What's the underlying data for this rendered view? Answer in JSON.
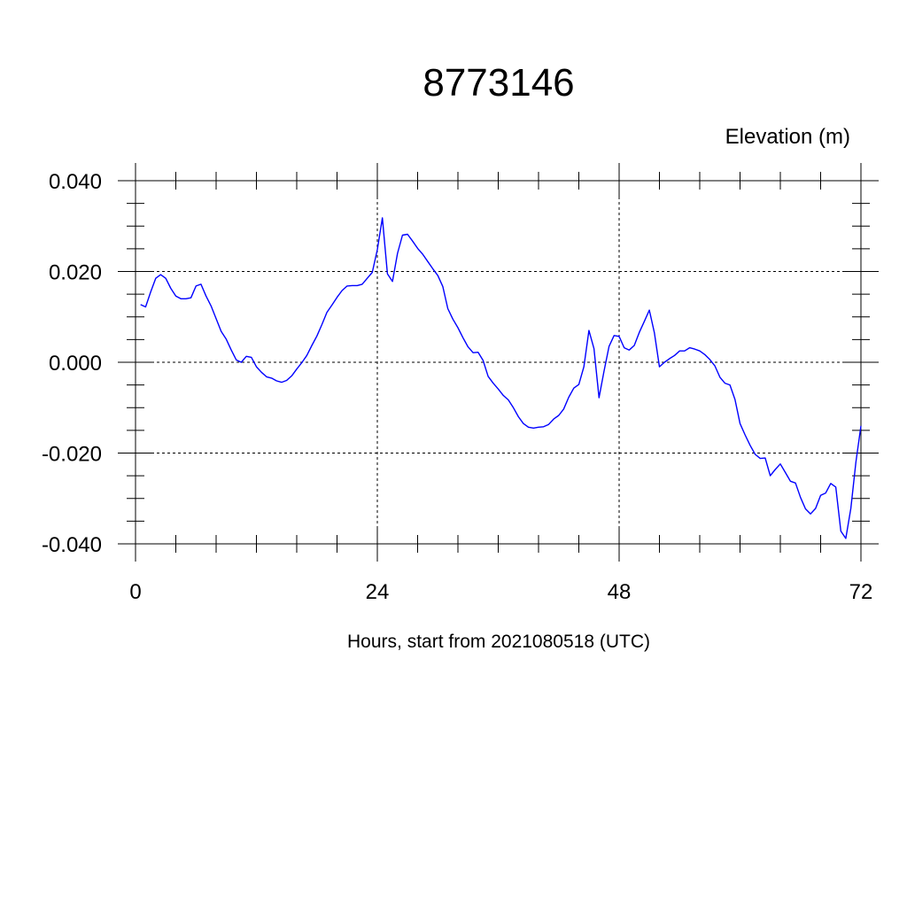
{
  "chart_data": {
    "type": "line",
    "title": "8773146",
    "unit_label": "Elevation (m)",
    "xlabel": "Hours, start from 2021080518 (UTC)",
    "xlim": [
      0,
      72
    ],
    "ylim": [
      -0.04,
      0.04
    ],
    "x_ticks": [
      0,
      24,
      48,
      72
    ],
    "x_tick_labels": [
      "0",
      "24",
      "48",
      "72"
    ],
    "y_ticks": [
      0.04,
      0.02,
      0.0,
      -0.02,
      -0.04
    ],
    "y_tick_labels": [
      "0.040",
      "0.020",
      "0.000",
      "-0.020",
      "-0.040"
    ],
    "grid": true,
    "line_color": "#0000ff",
    "series": [
      {
        "x": [
          0.5,
          1.0,
          1.5,
          2.0,
          2.5,
          3.0,
          3.5,
          4.0,
          4.5,
          5.0,
          5.5,
          6.0,
          6.5,
          7.0,
          7.5,
          8.0,
          8.5,
          9.0,
          9.5,
          10.0,
          10.5,
          11.0,
          11.5,
          12.0,
          12.5,
          13.0,
          13.5,
          14.0,
          14.5,
          15.0,
          15.5,
          16.0,
          16.5,
          17.0,
          17.5,
          18.0,
          18.5,
          19.0,
          19.5,
          20.0,
          20.5,
          21.0,
          21.5,
          22.0,
          22.5,
          23.0,
          23.5,
          24.0,
          24.5,
          25.0,
          25.5,
          26.0,
          26.5,
          27.0,
          27.5,
          28.0,
          28.5,
          29.0,
          29.5,
          30.0,
          30.5,
          31.0,
          31.5,
          32.0,
          32.5,
          33.0,
          33.5,
          34.0,
          34.5,
          35.0,
          35.5,
          36.0,
          36.5,
          37.0,
          37.5,
          38.0,
          38.5,
          39.0,
          39.5,
          40.0,
          40.5,
          41.0,
          41.5,
          42.0,
          42.5,
          43.0,
          43.5,
          44.0,
          44.5,
          45.0,
          45.5,
          46.0,
          46.5,
          47.0,
          47.5,
          48.0,
          48.5,
          49.0,
          49.5,
          50.0,
          50.5,
          51.0,
          51.5,
          52.0,
          52.5,
          53.0,
          53.5,
          54.0,
          54.5,
          55.0,
          55.5,
          56.0,
          56.5,
          57.0,
          57.5,
          58.0,
          58.5,
          59.0,
          59.5,
          60.0,
          60.5,
          61.0,
          61.5,
          62.0,
          62.5,
          63.0,
          63.5,
          64.0,
          64.5,
          65.0,
          65.5,
          66.0,
          66.5,
          67.0,
          67.5,
          68.0,
          68.5,
          69.0,
          69.5,
          70.0,
          70.5,
          71.0,
          71.5,
          72.0
        ],
        "y": [
          0.0127,
          0.0122,
          0.0155,
          0.0185,
          0.0193,
          0.0185,
          0.0163,
          0.0146,
          0.014,
          0.014,
          0.0142,
          0.0168,
          0.0172,
          0.0146,
          0.0124,
          0.0096,
          0.0068,
          0.0051,
          0.0027,
          0.0005,
          0.0,
          0.0013,
          0.0011,
          -0.001,
          -0.0022,
          -0.0032,
          -0.0035,
          -0.0041,
          -0.0044,
          -0.004,
          -0.003,
          -0.0015,
          -0.0001,
          0.0015,
          0.0037,
          0.0058,
          0.0083,
          0.011,
          0.0126,
          0.0143,
          0.0158,
          0.0168,
          0.0169,
          0.0169,
          0.0172,
          0.0185,
          0.0198,
          0.0248,
          0.0318,
          0.0195,
          0.0178,
          0.024,
          0.028,
          0.0282,
          0.0267,
          0.0251,
          0.0238,
          0.0222,
          0.0206,
          0.0191,
          0.0167,
          0.0118,
          0.0095,
          0.0076,
          0.0054,
          0.0034,
          0.0021,
          0.0022,
          0.0004,
          -0.0031,
          -0.0046,
          -0.0059,
          -0.0073,
          -0.0083,
          -0.01,
          -0.012,
          -0.0135,
          -0.0143,
          -0.0145,
          -0.0143,
          -0.0142,
          -0.0137,
          -0.0125,
          -0.0117,
          -0.0103,
          -0.0077,
          -0.0057,
          -0.0049,
          -0.001,
          0.007,
          0.003,
          -0.0078,
          -0.002,
          0.0035,
          0.0059,
          0.0057,
          0.0032,
          0.0027,
          0.0037,
          0.0066,
          0.009,
          0.0115,
          0.0065,
          -0.001,
          0.0,
          0.0008,
          0.0015,
          0.0025,
          0.0025,
          0.0032,
          0.0029,
          0.0025,
          0.0017,
          0.0006,
          -0.0008,
          -0.0033,
          -0.0046,
          -0.005,
          -0.0082,
          -0.0135,
          -0.016,
          -0.0183,
          -0.0203,
          -0.0212,
          -0.0211,
          -0.025,
          -0.0236,
          -0.0224,
          -0.0243,
          -0.0262,
          -0.0266,
          -0.0298,
          -0.0323,
          -0.0334,
          -0.0322,
          -0.0293,
          -0.0288,
          -0.0267,
          -0.0275,
          -0.0372,
          -0.0388,
          -0.0322,
          -0.022,
          -0.014
        ]
      }
    ]
  }
}
